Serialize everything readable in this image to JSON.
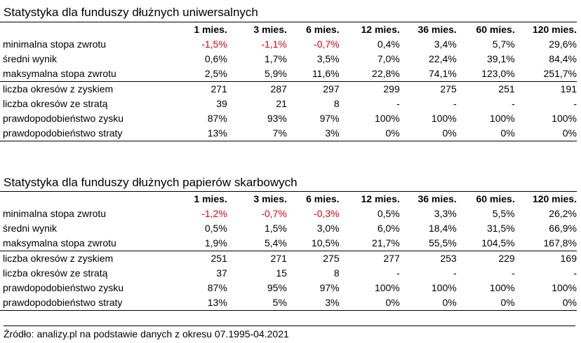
{
  "columns": [
    "1 mies.",
    "3 mies.",
    "6 mies.",
    "12 mies.",
    "36 mies.",
    "60 mies.",
    "120 mies."
  ],
  "colors": {
    "negative": "#e0000a",
    "text": "#000000"
  },
  "tables": [
    {
      "title": "Statystyka dla funduszy dłużnych uniwersalnych",
      "rows": [
        {
          "label": "minimalna stopa zwrotu",
          "values": [
            "-1,5%",
            "-1,1%",
            "-0,7%",
            "0,4%",
            "3,4%",
            "5,7%",
            "29,6%"
          ],
          "negative": [
            true,
            true,
            true,
            false,
            false,
            false,
            false
          ]
        },
        {
          "label": "średni wynik",
          "values": [
            "0,6%",
            "1,7%",
            "3,5%",
            "7,0%",
            "22,4%",
            "39,1%",
            "84,4%"
          ],
          "negative": [
            false,
            false,
            false,
            false,
            false,
            false,
            false
          ]
        },
        {
          "label": "maksymalna stopa zwrotu",
          "values": [
            "2,5%",
            "5,9%",
            "11,6%",
            "22,8%",
            "74,1%",
            "123,0%",
            "251,7%"
          ],
          "negative": [
            false,
            false,
            false,
            false,
            false,
            false,
            false
          ]
        },
        {
          "label": "liczba okresów z zyskiem",
          "values": [
            "271",
            "287",
            "297",
            "299",
            "275",
            "251",
            "191"
          ],
          "negative": [
            false,
            false,
            false,
            false,
            false,
            false,
            false
          ]
        },
        {
          "label": "liczba okresów ze stratą",
          "values": [
            "39",
            "21",
            "8",
            "-",
            "-",
            "-",
            "-"
          ],
          "negative": [
            false,
            false,
            false,
            false,
            false,
            false,
            false
          ]
        },
        {
          "label": "prawdopodobieństwo zysku",
          "values": [
            "87%",
            "93%",
            "97%",
            "100%",
            "100%",
            "100%",
            "100%"
          ],
          "negative": [
            false,
            false,
            false,
            false,
            false,
            false,
            false
          ]
        },
        {
          "label": "prawdopodobieństwo straty",
          "values": [
            "13%",
            "7%",
            "3%",
            "0%",
            "0%",
            "0%",
            "0%"
          ],
          "negative": [
            false,
            false,
            false,
            false,
            false,
            false,
            false
          ]
        }
      ]
    },
    {
      "title": "Statystyka dla funduszy dłużnych papierów skarbowych",
      "rows": [
        {
          "label": "minimalna stopa zwrotu",
          "values": [
            "-1,2%",
            "-0,7%",
            "-0,3%",
            "0,5%",
            "3,3%",
            "5,5%",
            "26,2%"
          ],
          "negative": [
            true,
            true,
            true,
            false,
            false,
            false,
            false
          ]
        },
        {
          "label": "średni wynik",
          "values": [
            "0,5%",
            "1,5%",
            "3,0%",
            "6,0%",
            "18,4%",
            "31,5%",
            "66,9%"
          ],
          "negative": [
            false,
            false,
            false,
            false,
            false,
            false,
            false
          ]
        },
        {
          "label": "maksymalna stopa zwrotu",
          "values": [
            "1,9%",
            "5,4%",
            "10,5%",
            "21,7%",
            "55,5%",
            "104,5%",
            "167,8%"
          ],
          "negative": [
            false,
            false,
            false,
            false,
            false,
            false,
            false
          ]
        },
        {
          "label": "liczba okresów z zyskiem",
          "values": [
            "251",
            "271",
            "275",
            "277",
            "253",
            "229",
            "169"
          ],
          "negative": [
            false,
            false,
            false,
            false,
            false,
            false,
            false
          ]
        },
        {
          "label": "liczba okresów ze stratą",
          "values": [
            "37",
            "15",
            "8",
            "-",
            "-",
            "-",
            "-"
          ],
          "negative": [
            false,
            false,
            false,
            false,
            false,
            false,
            false
          ]
        },
        {
          "label": "prawdopodobieństwo zysku",
          "values": [
            "87%",
            "95%",
            "97%",
            "100%",
            "100%",
            "100%",
            "100%"
          ],
          "negative": [
            false,
            false,
            false,
            false,
            false,
            false,
            false
          ]
        },
        {
          "label": "prawdopodobieństwo straty",
          "values": [
            "13%",
            "5%",
            "3%",
            "0%",
            "0%",
            "0%",
            "0%"
          ],
          "negative": [
            false,
            false,
            false,
            false,
            false,
            false,
            false
          ]
        }
      ]
    }
  ],
  "source": "Źródło: analizy.pl na podstawie danych z okresu 07.1995-04.2021"
}
